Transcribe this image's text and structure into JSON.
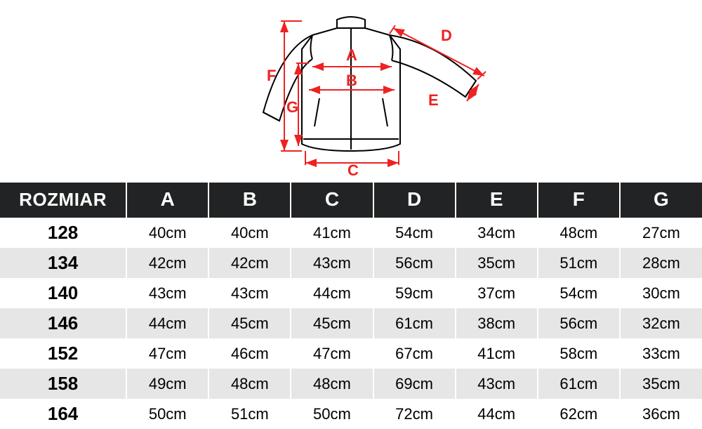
{
  "diagram": {
    "stroke_garment": "#000000",
    "stroke_measure": "#ee2222",
    "stroke_width_garment": 2,
    "stroke_width_measure": 2,
    "labels": {
      "A": "A",
      "B": "B",
      "C": "C",
      "D": "D",
      "E": "E",
      "F": "F",
      "G": "G"
    },
    "label_color": "#ee2222",
    "label_fontsize": 22
  },
  "table": {
    "header_bg": "#222324",
    "header_fg": "#ffffff",
    "row_odd_bg": "#ffffff",
    "row_even_bg": "#e6e6e6",
    "columns": [
      "ROZMIAR",
      "A",
      "B",
      "C",
      "D",
      "E",
      "F",
      "G"
    ],
    "rows": [
      [
        "128",
        "40cm",
        "40cm",
        "41cm",
        "54cm",
        "34cm",
        "48cm",
        "27cm"
      ],
      [
        "134",
        "42cm",
        "42cm",
        "43cm",
        "56cm",
        "35cm",
        "51cm",
        "28cm"
      ],
      [
        "140",
        "43cm",
        "43cm",
        "44cm",
        "59cm",
        "37cm",
        "54cm",
        "30cm"
      ],
      [
        "146",
        "44cm",
        "45cm",
        "45cm",
        "61cm",
        "38cm",
        "56cm",
        "32cm"
      ],
      [
        "152",
        "47cm",
        "46cm",
        "47cm",
        "67cm",
        "41cm",
        "58cm",
        "33cm"
      ],
      [
        "158",
        "49cm",
        "48cm",
        "48cm",
        "69cm",
        "43cm",
        "61cm",
        "35cm"
      ],
      [
        "164",
        "50cm",
        "51cm",
        "50cm",
        "72cm",
        "44cm",
        "62cm",
        "36cm"
      ]
    ]
  }
}
